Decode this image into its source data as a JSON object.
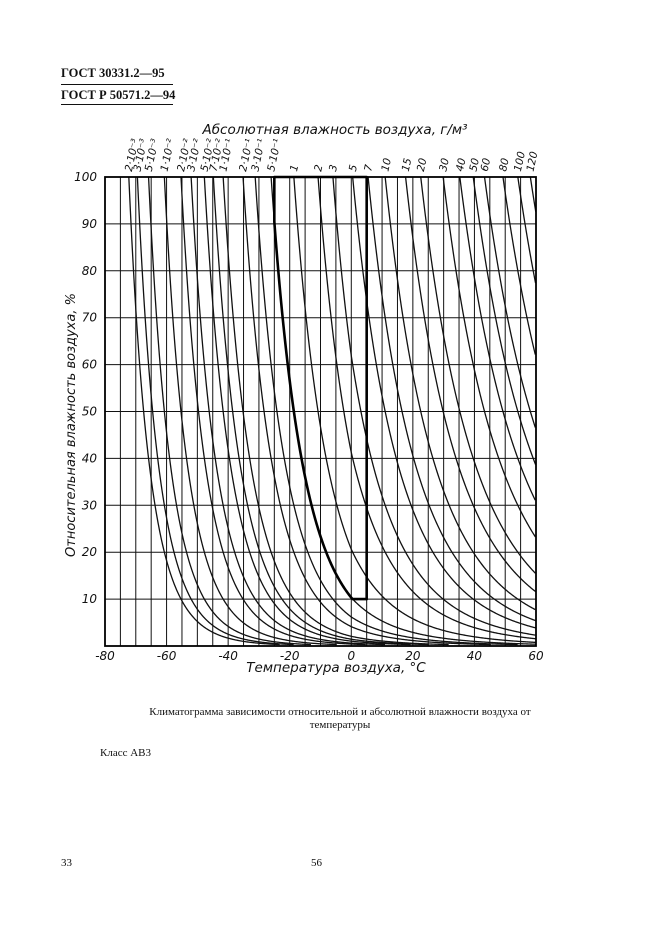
{
  "header": {
    "line1": "ГОСТ 30331.2—95",
    "line2": "ГОСТ Р 50571.2—94"
  },
  "chart_data": {
    "type": "line",
    "top_axis_label": "Абсолютная влажность воздуха, г/м³",
    "xlabel": "Температура воздуха, °С",
    "ylabel": "Относительная влажность воздуха, %",
    "xlim": [
      -80,
      60
    ],
    "ylim": [
      0,
      100
    ],
    "x_ticks": [
      "-80",
      "-60",
      "-40",
      "-20",
      "0",
      "20",
      "40",
      "60"
    ],
    "y_ticks": [
      "10",
      "20",
      "30",
      "40",
      "50",
      "60",
      "70",
      "80",
      "90",
      "100"
    ],
    "x_grid_step": 5,
    "y_grid_step": 10,
    "grid": true,
    "absolute_humidity_curves": [
      {
        "label": "2·10⁻³",
        "value": 0.002
      },
      {
        "label": "3·10⁻³",
        "value": 0.003
      },
      {
        "label": "5·10⁻³",
        "value": 0.005
      },
      {
        "label": "1·10⁻²",
        "value": 0.01
      },
      {
        "label": "2·10⁻²",
        "value": 0.02
      },
      {
        "label": "3·10⁻²",
        "value": 0.03
      },
      {
        "label": "5·10⁻²",
        "value": 0.05
      },
      {
        "label": "7·10⁻²",
        "value": 0.07
      },
      {
        "label": "1·10⁻¹",
        "value": 0.1
      },
      {
        "label": "2·10⁻¹",
        "value": 0.2
      },
      {
        "label": "3·10⁻¹",
        "value": 0.3
      },
      {
        "label": "5·10⁻¹",
        "value": 0.5
      },
      {
        "label": "1",
        "value": 1
      },
      {
        "label": "2",
        "value": 2
      },
      {
        "label": "3",
        "value": 3
      },
      {
        "label": "5",
        "value": 5
      },
      {
        "label": "7",
        "value": 7
      },
      {
        "label": "10",
        "value": 10
      },
      {
        "label": "15",
        "value": 15
      },
      {
        "label": "20",
        "value": 20
      },
      {
        "label": "30",
        "value": 30
      },
      {
        "label": "40",
        "value": 40
      },
      {
        "label": "50",
        "value": 50
      },
      {
        "label": "60",
        "value": 60
      },
      {
        "label": "80",
        "value": 80
      },
      {
        "label": "100",
        "value": 100
      },
      {
        "label": "120",
        "value": 120
      }
    ],
    "class_region": {
      "t_min": -25,
      "t_max": 5,
      "rh_min": 10,
      "rh_max": 100,
      "lower_boundary_abs_humidity": 0.5
    }
  },
  "caption": "Климатограмма зависимости относительной и абсолютной влажности воздуха от температуры",
  "class_label": "Класс АВ3",
  "page_left": "33",
  "page_center": "56"
}
